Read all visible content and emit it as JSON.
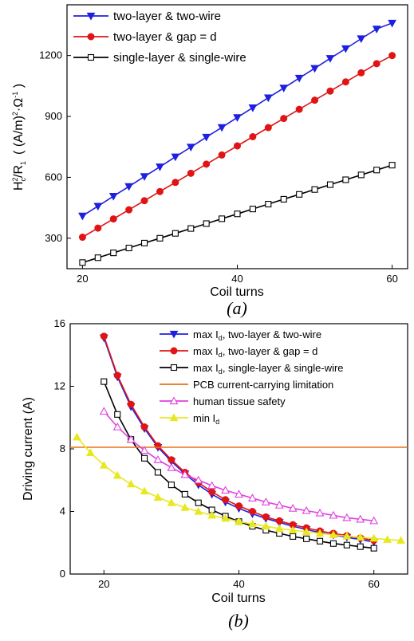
{
  "chart_data": [
    {
      "type": "line",
      "panel_label": "(a)",
      "xlabel": "Coil turns",
      "ylabel": "H²c/R₁ ( (A/m)²·Ω⁻¹ )",
      "xlim": [
        18,
        62
      ],
      "ylim": [
        150,
        1450
      ],
      "xticks": [
        20,
        40,
        60
      ],
      "yticks": [
        300,
        600,
        900,
        1200
      ],
      "legend_position": "top-left",
      "x": [
        20,
        22,
        24,
        26,
        28,
        30,
        32,
        34,
        36,
        38,
        40,
        42,
        44,
        46,
        48,
        50,
        52,
        54,
        56,
        58,
        60
      ],
      "series": [
        {
          "name": "two-layer & two-wire",
          "color": "#1f1fe0",
          "marker": "triangle-down",
          "values": [
            410,
            458,
            507,
            555,
            604,
            652,
            701,
            749,
            798,
            846,
            895,
            943,
            992,
            1040,
            1089,
            1137,
            1186,
            1234,
            1283,
            1331,
            1360
          ]
        },
        {
          "name": "two-layer & gap = d",
          "color": "#e01414",
          "marker": "circle",
          "values": [
            305,
            350,
            395,
            440,
            485,
            530,
            575,
            620,
            665,
            710,
            755,
            800,
            845,
            890,
            935,
            980,
            1025,
            1070,
            1115,
            1160,
            1200
          ]
        },
        {
          "name": "single-layer & single-wire",
          "color": "#000000",
          "marker": "square-open",
          "values": [
            180,
            204,
            228,
            252,
            276,
            300,
            324,
            348,
            372,
            396,
            420,
            444,
            468,
            492,
            516,
            540,
            564,
            588,
            612,
            636,
            660
          ]
        }
      ]
    },
    {
      "type": "line",
      "panel_label": "(b)",
      "xlabel": "Coil turns",
      "ylabel": "Driving current (A)",
      "xlim": [
        15,
        65
      ],
      "ylim": [
        0,
        16
      ],
      "xticks": [
        20,
        40,
        60
      ],
      "yticks": [
        0,
        4,
        8,
        12,
        16
      ],
      "legend_position": "top-right",
      "series": [
        {
          "name": "max Id, two-layer & two-wire",
          "color": "#1f1fe0",
          "marker": "triangle-down",
          "x": [
            20,
            22,
            24,
            26,
            28,
            30,
            32,
            34,
            36,
            38,
            40,
            42,
            44,
            46,
            48,
            50,
            52,
            54,
            56,
            58,
            60
          ],
          "values": [
            15.1,
            12.6,
            10.7,
            9.3,
            8.1,
            7.2,
            6.4,
            5.7,
            5.1,
            4.6,
            4.2,
            3.85,
            3.55,
            3.3,
            3.05,
            2.85,
            2.65,
            2.5,
            2.35,
            2.2,
            2.05
          ]
        },
        {
          "name": "max Id, two-layer & gap = d",
          "color": "#e01414",
          "marker": "circle",
          "x": [
            20,
            22,
            24,
            26,
            28,
            30,
            32,
            34,
            36,
            38,
            40,
            42,
            44,
            46,
            48,
            50,
            52,
            54,
            56,
            58,
            60
          ],
          "values": [
            15.2,
            12.7,
            10.85,
            9.4,
            8.2,
            7.3,
            6.5,
            5.85,
            5.25,
            4.75,
            4.35,
            4.0,
            3.65,
            3.4,
            3.15,
            2.95,
            2.75,
            2.6,
            2.45,
            2.3,
            2.15
          ]
        },
        {
          "name": "max Id, single-layer & single-wire",
          "color": "#000000",
          "marker": "square-open",
          "x": [
            20,
            22,
            24,
            26,
            28,
            30,
            32,
            34,
            36,
            38,
            40,
            42,
            44,
            46,
            48,
            50,
            52,
            54,
            56,
            58,
            60
          ],
          "values": [
            12.3,
            10.2,
            8.6,
            7.4,
            6.5,
            5.7,
            5.1,
            4.55,
            4.1,
            3.7,
            3.35,
            3.05,
            2.8,
            2.6,
            2.4,
            2.25,
            2.1,
            1.95,
            1.85,
            1.75,
            1.65
          ]
        },
        {
          "name": "PCB current-carrying limitation",
          "color": "#e8701a",
          "marker": "none",
          "x": [
            15,
            65
          ],
          "values": [
            8.1,
            8.1
          ]
        },
        {
          "name": "human tissue safety",
          "color": "#e040e0",
          "marker": "triangle-up-open",
          "x": [
            20,
            22,
            24,
            26,
            28,
            30,
            32,
            34,
            36,
            38,
            40,
            42,
            44,
            46,
            48,
            50,
            52,
            54,
            56,
            58,
            60
          ],
          "values": [
            10.4,
            9.4,
            8.6,
            7.9,
            7.3,
            6.8,
            6.35,
            6.0,
            5.65,
            5.35,
            5.1,
            4.85,
            4.6,
            4.4,
            4.2,
            4.05,
            3.9,
            3.75,
            3.6,
            3.5,
            3.4
          ]
        },
        {
          "name": "min Id",
          "color": "#e8e820",
          "marker": "triangle-up",
          "x": [
            16,
            18,
            20,
            22,
            24,
            26,
            28,
            30,
            32,
            34,
            36,
            38,
            40,
            42,
            44,
            46,
            48,
            50,
            52,
            54,
            56,
            58,
            60,
            62,
            64
          ],
          "values": [
            8.75,
            7.75,
            6.95,
            6.3,
            5.75,
            5.3,
            4.9,
            4.55,
            4.25,
            4.0,
            3.75,
            3.55,
            3.35,
            3.2,
            3.05,
            2.9,
            2.8,
            2.7,
            2.6,
            2.5,
            2.42,
            2.35,
            2.28,
            2.2,
            2.15
          ]
        }
      ]
    }
  ]
}
